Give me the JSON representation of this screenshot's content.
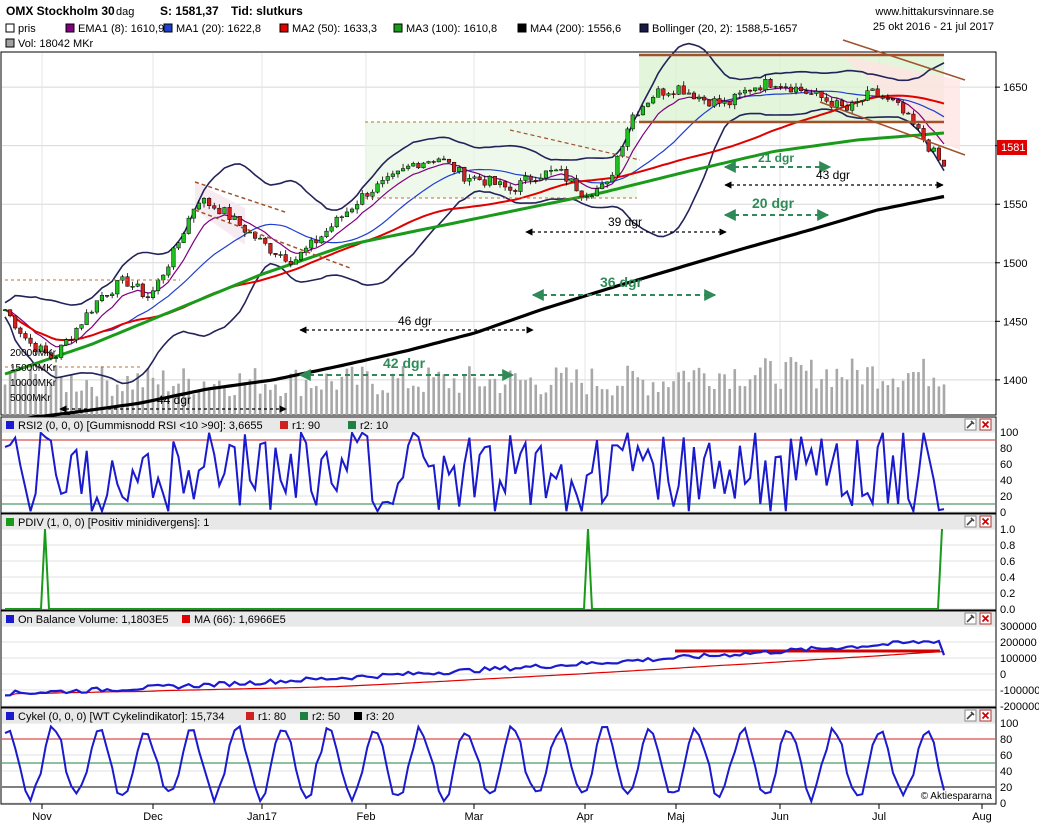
{
  "header": {
    "title": "OMX Stockholm 30",
    "interval": "dag",
    "last": "S: 1581,37",
    "time": "Tid: slutkurs",
    "site": "www.hittakursvinnare.se",
    "period": "25 okt 2016 - 21 jul 2017"
  },
  "legend": [
    {
      "label": "pris",
      "color": "#ffffff"
    },
    {
      "label": "EMA1 (8): 1610,9",
      "color": "#800080"
    },
    {
      "label": "MA1 (20): 1622,8",
      "color": "#1f3fcf"
    },
    {
      "label": "MA2 (50): 1633,3",
      "color": "#e00000"
    },
    {
      "label": "MA3 (100): 1610,8",
      "color": "#1a9a1a"
    },
    {
      "label": "MA4 (200): 1556,6",
      "color": "#000000"
    },
    {
      "label": "Bollinger (20, 2): 1588,5-1657",
      "color": "#1a1a4a"
    },
    {
      "label": "Vol: 18042 MKr",
      "color": "#a0a0a0"
    }
  ],
  "price_badge": "1581",
  "volume_labels": [
    "20000MKr",
    "15000MKr",
    "10000MKr",
    "5000MKr"
  ],
  "annotations": {
    "a21": "21 dgr",
    "a43": "43 dgr",
    "a20": "20 dgr",
    "a39": "39 dgr",
    "a36": "36 dgr",
    "a46": "46 dgr",
    "a42": "42 dgr",
    "a44": "44 dgr"
  },
  "panels": {
    "rsi": {
      "title": "RSI2 (0, 0, 0) [Gummisnodd RSI <10 >90]: 3,6655",
      "r1": "r1: 90",
      "r2": "r2: 10"
    },
    "pdiv": {
      "title": "PDIV (1, 0, 0) [Positiv minidivergens]: 1"
    },
    "obv": {
      "title": "On Balance Volume: 1,1803E5",
      "ma": "MA (66): 1,6966E5"
    },
    "cykel": {
      "title": "Cykel (0, 0, 0) [WT Cykelindikator]: 15,734",
      "r1": "r1: 80",
      "r2": "r2: 50",
      "r3": "r3: 20"
    }
  },
  "watermark": "© Aktiespararna",
  "x_months": [
    "Nov",
    "Dec",
    "Jan17",
    "Feb",
    "Mar",
    "Apr",
    "Maj",
    "Jun",
    "Jul",
    "Aug"
  ],
  "icons": {
    "tool": "wrench-icon",
    "close": "close-icon"
  },
  "chart_data": [
    {
      "type": "line",
      "name": "price",
      "ylim": [
        1370,
        1680
      ],
      "yticks": [
        1400,
        1450,
        1500,
        1550,
        1600,
        1650
      ],
      "months": [
        "2016-11",
        "2016-12",
        "2017-01",
        "2017-02",
        "2017-03",
        "2017-04",
        "2017-05",
        "2017-06",
        "2017-07"
      ],
      "close_path": [
        1460,
        1432,
        1418,
        1445,
        1472,
        1485,
        1470,
        1508,
        1555,
        1545,
        1528,
        1512,
        1502,
        1520,
        1540,
        1560,
        1570,
        1585,
        1590,
        1575,
        1570,
        1562,
        1575,
        1578,
        1560,
        1565,
        1625,
        1645,
        1650,
        1640,
        1635,
        1650,
        1655,
        1648,
        1640,
        1630,
        1645,
        1635,
        1610,
        1581
      ],
      "ma4_200": [
        1365,
        1372,
        1380,
        1392,
        1400,
        1412,
        1425,
        1440,
        1460,
        1478,
        1495,
        1512,
        1528,
        1545,
        1556.6
      ],
      "ma3_100": [
        1405,
        1430,
        1460,
        1490,
        1515,
        1530,
        1545,
        1560,
        1578,
        1595,
        1605,
        1610.8
      ],
      "current": 1581.37
    },
    {
      "type": "line",
      "name": "RSI2",
      "ylim": [
        0,
        100
      ],
      "yticks": [
        0,
        20,
        40,
        60,
        80,
        100
      ],
      "ref_lines": [
        90,
        10
      ],
      "last": 3.6655
    },
    {
      "type": "line",
      "name": "PDIV",
      "ylim": [
        0,
        1
      ],
      "yticks": [
        0,
        0.2,
        0.4,
        0.6,
        0.8,
        1.0
      ],
      "spikes_month": [
        "2016-11",
        "2017-04",
        "2017-07"
      ],
      "last": 1
    },
    {
      "type": "line",
      "name": "On Balance Volume",
      "ylim": [
        -200000,
        300000
      ],
      "yticks": [
        -200000,
        -100000,
        0,
        100000,
        200000,
        300000
      ],
      "ytick_labels": [
        "-200000",
        "-100000",
        "0",
        "100000",
        "200000",
        "300000"
      ],
      "last": 118030,
      "ma66": 169660
    },
    {
      "type": "line",
      "name": "Cykel",
      "ylim": [
        0,
        100
      ],
      "yticks": [
        0,
        20,
        40,
        60,
        80,
        100
      ],
      "ref_lines": [
        80,
        50,
        20
      ],
      "last": 15.734
    }
  ]
}
